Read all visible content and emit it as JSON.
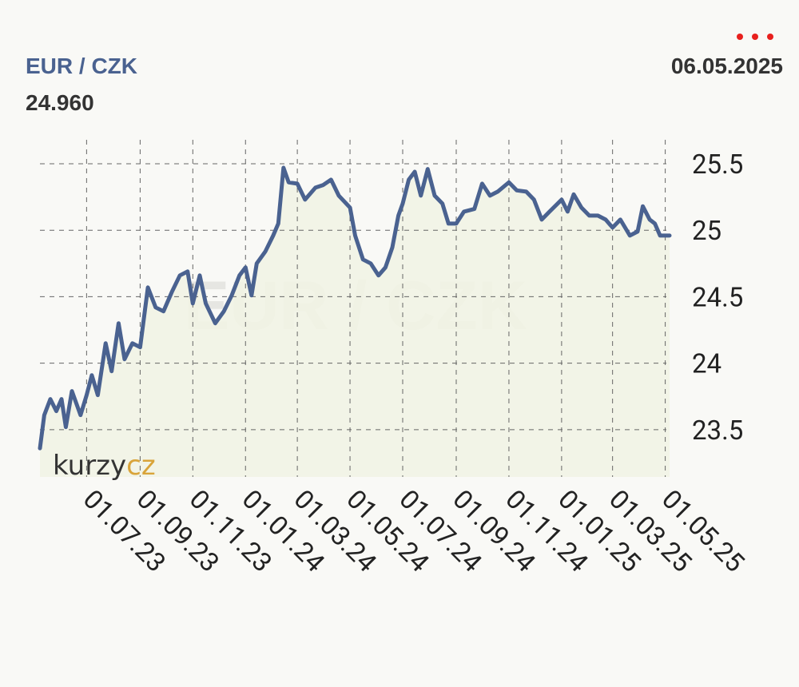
{
  "header": {
    "pair": "EUR / CZK",
    "price": "24.960",
    "date": "06.05.2025"
  },
  "chart_data": {
    "type": "line",
    "watermark": "EUR / CZK",
    "logo": {
      "left": "kurzy",
      "right": "cz"
    },
    "x": [
      "2023-05-08",
      "2023-05-13",
      "2023-05-20",
      "2023-05-27",
      "2023-06-02",
      "2023-06-07",
      "2023-06-14",
      "2023-06-24",
      "2023-07-01",
      "2023-07-07",
      "2023-07-14",
      "2023-07-23",
      "2023-07-30",
      "2023-08-07",
      "2023-08-14",
      "2023-08-23",
      "2023-09-01",
      "2023-09-10",
      "2023-09-19",
      "2023-09-28",
      "2023-10-08",
      "2023-10-17",
      "2023-10-26",
      "2023-11-01",
      "2023-11-09",
      "2023-11-16",
      "2023-11-27",
      "2023-12-07",
      "2023-12-16",
      "2023-12-25",
      "2024-01-01",
      "2024-01-08",
      "2024-01-14",
      "2024-01-24",
      "2024-02-02",
      "2024-02-08",
      "2024-02-14",
      "2024-02-20",
      "2024-03-01",
      "2024-03-10",
      "2024-03-22",
      "2024-03-31",
      "2024-04-09",
      "2024-04-18",
      "2024-05-01",
      "2024-05-07",
      "2024-05-16",
      "2024-05-25",
      "2024-06-03",
      "2024-06-11",
      "2024-06-19",
      "2024-06-26",
      "2024-07-01",
      "2024-07-08",
      "2024-07-15",
      "2024-07-22",
      "2024-07-30",
      "2024-08-07",
      "2024-08-16",
      "2024-08-23",
      "2024-09-01",
      "2024-09-10",
      "2024-09-22",
      "2024-10-01",
      "2024-10-10",
      "2024-10-19",
      "2024-11-01",
      "2024-11-10",
      "2024-11-21",
      "2024-11-30",
      "2024-12-09",
      "2024-12-18",
      "2025-01-01",
      "2025-01-08",
      "2025-01-15",
      "2025-01-24",
      "2025-02-02",
      "2025-02-12",
      "2025-02-21",
      "2025-03-01",
      "2025-03-10",
      "2025-03-21",
      "2025-03-30",
      "2025-04-05",
      "2025-04-13",
      "2025-04-19",
      "2025-04-25",
      "2025-05-06"
    ],
    "series": [
      {
        "name": "EUR / CZK",
        "color": "#4a6290",
        "values": [
          23.36,
          23.61,
          23.73,
          23.64,
          23.73,
          23.52,
          23.79,
          23.61,
          23.76,
          23.91,
          23.76,
          24.15,
          23.94,
          24.3,
          24.03,
          24.15,
          24.12,
          24.57,
          24.42,
          24.39,
          24.54,
          24.66,
          24.69,
          24.45,
          24.66,
          24.45,
          24.3,
          24.39,
          24.51,
          24.66,
          24.72,
          24.51,
          24.75,
          24.84,
          24.96,
          25.05,
          25.47,
          25.36,
          25.35,
          25.23,
          25.32,
          25.34,
          25.38,
          25.26,
          25.17,
          24.96,
          24.78,
          24.75,
          24.66,
          24.72,
          24.87,
          25.11,
          25.2,
          25.38,
          25.44,
          25.26,
          25.46,
          25.26,
          25.2,
          25.05,
          25.05,
          25.14,
          25.16,
          25.35,
          25.26,
          25.29,
          25.36,
          25.3,
          25.29,
          25.23,
          25.08,
          25.14,
          25.23,
          25.14,
          25.27,
          25.17,
          25.11,
          25.11,
          25.08,
          25.02,
          25.08,
          24.96,
          24.99,
          25.18,
          25.08,
          25.05,
          24.96,
          24.96
        ]
      }
    ],
    "xlim": [
      "2023-05-08",
      "2025-05-06"
    ],
    "xticks": [
      {
        "value": "2023-07-01",
        "label": "01.07.23"
      },
      {
        "value": "2023-09-01",
        "label": "01.09.23"
      },
      {
        "value": "2023-11-01",
        "label": "01.11.23"
      },
      {
        "value": "2024-01-01",
        "label": "01.01.24"
      },
      {
        "value": "2024-03-01",
        "label": "01.03.24"
      },
      {
        "value": "2024-05-01",
        "label": "01.05.24"
      },
      {
        "value": "2024-07-01",
        "label": "01.07.24"
      },
      {
        "value": "2024-09-01",
        "label": "01.09.24"
      },
      {
        "value": "2024-11-01",
        "label": "01.11.24"
      },
      {
        "value": "2025-01-01",
        "label": "01.01.25"
      },
      {
        "value": "2025-03-01",
        "label": "01.03.25"
      },
      {
        "value": "2025-05-01",
        "label": "01.05.25"
      }
    ],
    "ylim": [
      23.145,
      25.68
    ],
    "yticks": [
      25.5,
      25,
      24.5,
      24,
      23.5
    ],
    "grid": true
  }
}
